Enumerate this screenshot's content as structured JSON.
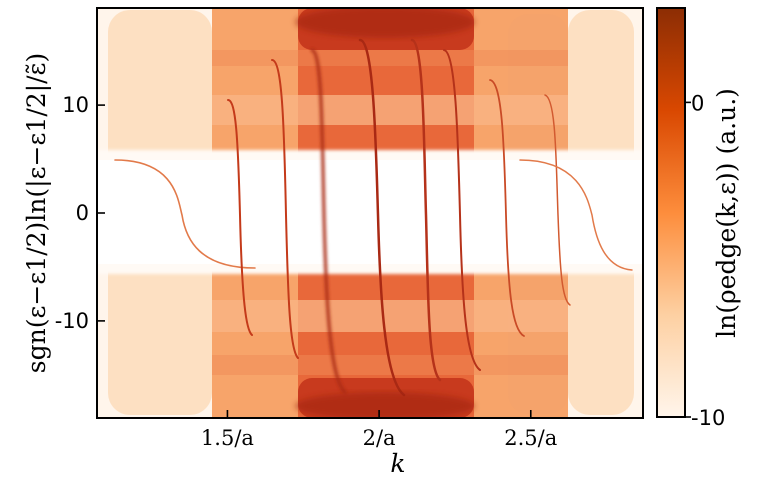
{
  "chart_data": {
    "type": "heatmap",
    "xlabel": "k",
    "ylabel": "sgn(ε−ε1/2)ln(|ε−ε1/2|/ε̃)",
    "colorbar_label": "ln(ρedge(k,ε)) (a.u.)",
    "xlim": [
      1.07,
      2.87
    ],
    "ylim": [
      -19,
      19
    ],
    "x_ticks": [
      {
        "value": 1.5,
        "label": "1.5/a"
      },
      {
        "value": 2.0,
        "label": "2/a"
      },
      {
        "value": 2.5,
        "label": "2.5/a"
      }
    ],
    "y_ticks": [
      {
        "value": 10,
        "label": "10"
      },
      {
        "value": 0,
        "label": "0"
      },
      {
        "value": -10,
        "label": "-10"
      }
    ],
    "colorbar_range": [
      -10,
      3
    ],
    "colorbar_ticks": [
      {
        "value": 0,
        "label": "0"
      },
      {
        "value": -10,
        "label": "-10"
      }
    ],
    "colormap": [
      "#fff5eb",
      "#fdd0a2",
      "#fd8d3c",
      "#d94801",
      "#8c2d04"
    ],
    "grid": false
  }
}
